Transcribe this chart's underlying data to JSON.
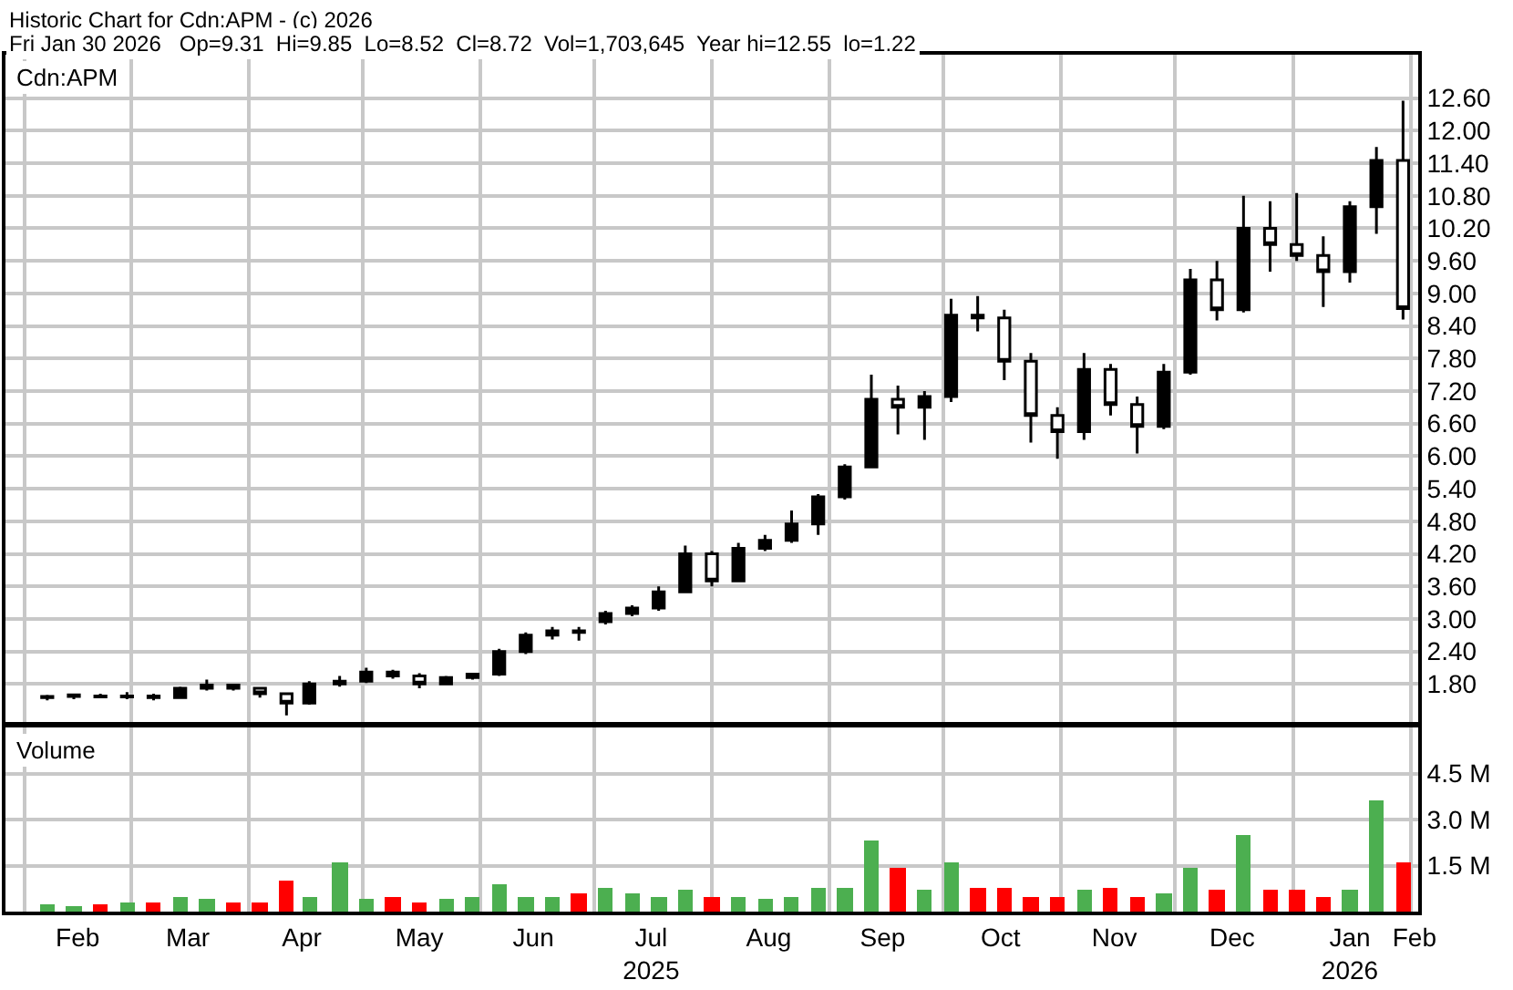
{
  "chart_data": [
    {
      "type": "candlestick",
      "title": "Historic Chart for Cdn:APM - (c) 2026",
      "subtitle": "Fri Jan 30 2026   Op=9.31  Hi=9.85  Lo=8.52  Cl=8.72  Vol=1,703,645  Year hi=12.55  lo=1.22",
      "annotations": [
        "Cdn:APM"
      ],
      "x": [
        "2025-02-07",
        "2025-02-14",
        "2025-02-21",
        "2025-02-28",
        "2025-03-07",
        "2025-03-14",
        "2025-03-21",
        "2025-03-28",
        "2025-04-04",
        "2025-04-11",
        "2025-04-17",
        "2025-04-25",
        "2025-05-02",
        "2025-05-09",
        "2025-05-16",
        "2025-05-23",
        "2025-05-30",
        "2025-06-06",
        "2025-06-13",
        "2025-06-20",
        "2025-06-27",
        "2025-07-04",
        "2025-07-11",
        "2025-07-18",
        "2025-07-25",
        "2025-08-01",
        "2025-08-08",
        "2025-08-15",
        "2025-08-22",
        "2025-08-29",
        "2025-09-05",
        "2025-09-12",
        "2025-09-19",
        "2025-09-26",
        "2025-10-03",
        "2025-10-10",
        "2025-10-17",
        "2025-10-24",
        "2025-10-31",
        "2025-11-07",
        "2025-11-14",
        "2025-11-21",
        "2025-11-28",
        "2025-12-05",
        "2025-12-12",
        "2025-12-19",
        "2025-12-26",
        "2026-01-02",
        "2026-01-09",
        "2026-01-16",
        "2026-01-23",
        "2026-01-30"
      ],
      "ohlc": [
        [
          1.55,
          1.6,
          1.5,
          1.57
        ],
        [
          1.57,
          1.62,
          1.52,
          1.6
        ],
        [
          1.58,
          1.62,
          1.54,
          1.56
        ],
        [
          1.56,
          1.65,
          1.52,
          1.58
        ],
        [
          1.58,
          1.62,
          1.5,
          1.55
        ],
        [
          1.55,
          1.75,
          1.54,
          1.72
        ],
        [
          1.72,
          1.88,
          1.68,
          1.78
        ],
        [
          1.78,
          1.8,
          1.68,
          1.72
        ],
        [
          1.72,
          1.74,
          1.55,
          1.62
        ],
        [
          1.62,
          1.64,
          1.22,
          1.45
        ],
        [
          1.45,
          1.85,
          1.42,
          1.8
        ],
        [
          1.8,
          1.95,
          1.75,
          1.85
        ],
        [
          1.85,
          2.1,
          1.82,
          2.02
        ],
        [
          2.02,
          2.06,
          1.9,
          1.95
        ],
        [
          1.95,
          2.0,
          1.72,
          1.8
        ],
        [
          1.8,
          1.95,
          1.78,
          1.92
        ],
        [
          1.92,
          2.0,
          1.88,
          1.98
        ],
        [
          1.98,
          2.45,
          1.95,
          2.4
        ],
        [
          2.4,
          2.75,
          2.35,
          2.7
        ],
        [
          2.7,
          2.85,
          2.62,
          2.78
        ],
        [
          2.78,
          2.85,
          2.6,
          2.75
        ],
        [
          2.95,
          3.15,
          2.9,
          3.1
        ],
        [
          3.1,
          3.25,
          3.05,
          3.2
        ],
        [
          3.2,
          3.6,
          3.15,
          3.5
        ],
        [
          3.5,
          4.35,
          3.5,
          4.2
        ],
        [
          4.2,
          4.25,
          3.6,
          3.7
        ],
        [
          3.7,
          4.4,
          3.7,
          4.3
        ],
        [
          4.3,
          4.55,
          4.25,
          4.45
        ],
        [
          4.45,
          5.0,
          4.4,
          4.75
        ],
        [
          4.75,
          5.3,
          4.55,
          5.25
        ],
        [
          5.25,
          5.85,
          5.2,
          5.8
        ],
        [
          5.8,
          7.5,
          5.8,
          7.05
        ],
        [
          7.05,
          7.3,
          6.4,
          6.9
        ],
        [
          6.9,
          7.2,
          6.3,
          7.1
        ],
        [
          7.1,
          8.9,
          7.0,
          8.6
        ],
        [
          8.6,
          8.95,
          8.3,
          8.55
        ],
        [
          8.55,
          8.7,
          7.4,
          7.75
        ],
        [
          7.75,
          7.9,
          6.25,
          6.75
        ],
        [
          6.75,
          6.9,
          5.95,
          6.45
        ],
        [
          6.45,
          7.9,
          6.3,
          7.6
        ],
        [
          7.6,
          7.7,
          6.75,
          6.95
        ],
        [
          6.95,
          7.1,
          6.05,
          6.55
        ],
        [
          6.55,
          7.7,
          6.5,
          7.55
        ],
        [
          7.55,
          9.45,
          7.5,
          9.25
        ],
        [
          9.25,
          9.6,
          8.5,
          8.7
        ],
        [
          8.7,
          10.8,
          8.65,
          10.2
        ],
        [
          10.2,
          10.7,
          9.4,
          9.9
        ],
        [
          9.9,
          10.85,
          9.6,
          9.7
        ],
        [
          9.7,
          10.05,
          8.75,
          9.4
        ],
        [
          9.4,
          10.7,
          9.2,
          10.6
        ],
        [
          10.6,
          11.7,
          10.1,
          11.45
        ],
        [
          11.45,
          12.55,
          8.52,
          8.72
        ]
      ],
      "color": "#000000",
      "xlim": [
        "2025-01-27",
        "2026-02-03"
      ],
      "ylim": [
        1.1,
        13.4
      ],
      "yticks": [
        {
          "value": 1.8,
          "label": "1.80"
        },
        {
          "value": 2.4,
          "label": "2.40"
        },
        {
          "value": 3.0,
          "label": "3.00"
        },
        {
          "value": 3.6,
          "label": "3.60"
        },
        {
          "value": 4.2,
          "label": "4.20"
        },
        {
          "value": 4.8,
          "label": "4.80"
        },
        {
          "value": 5.4,
          "label": "5.40"
        },
        {
          "value": 6.0,
          "label": "6.00"
        },
        {
          "value": 6.6,
          "label": "6.60"
        },
        {
          "value": 7.2,
          "label": "7.20"
        },
        {
          "value": 7.8,
          "label": "7.80"
        },
        {
          "value": 8.4,
          "label": "8.40"
        },
        {
          "value": 9.0,
          "label": "9.00"
        },
        {
          "value": 9.6,
          "label": "9.60"
        },
        {
          "value": 10.2,
          "label": "10.20"
        },
        {
          "value": 10.8,
          "label": "10.80"
        },
        {
          "value": 11.4,
          "label": "11.40"
        },
        {
          "value": 12.0,
          "label": "12.00"
        },
        {
          "value": 12.6,
          "label": "12.60"
        }
      ],
      "tick_labels": "y",
      "grid": true
    },
    {
      "type": "bar",
      "annotations": [
        "Volume"
      ],
      "x": [
        "2025-02-07",
        "2025-02-14",
        "2025-02-21",
        "2025-02-28",
        "2025-03-07",
        "2025-03-14",
        "2025-03-21",
        "2025-03-28",
        "2025-04-04",
        "2025-04-11",
        "2025-04-17",
        "2025-04-25",
        "2025-05-02",
        "2025-05-09",
        "2025-05-16",
        "2025-05-23",
        "2025-05-30",
        "2025-06-06",
        "2025-06-13",
        "2025-06-20",
        "2025-06-27",
        "2025-07-04",
        "2025-07-11",
        "2025-07-18",
        "2025-07-25",
        "2025-08-01",
        "2025-08-08",
        "2025-08-15",
        "2025-08-22",
        "2025-08-29",
        "2025-09-05",
        "2025-09-12",
        "2025-09-19",
        "2025-09-26",
        "2025-10-03",
        "2025-10-10",
        "2025-10-17",
        "2025-10-24",
        "2025-10-31",
        "2025-11-07",
        "2025-11-14",
        "2025-11-21",
        "2025-11-28",
        "2025-12-05",
        "2025-12-12",
        "2025-12-19",
        "2025-12-26",
        "2026-01-02",
        "2026-01-09",
        "2026-01-16",
        "2026-01-23",
        "2026-01-30"
      ],
      "values": [
        0.25,
        0.2,
        0.25,
        0.3,
        0.3,
        0.5,
        0.4,
        0.3,
        0.3,
        1.0,
        0.5,
        1.6,
        0.4,
        0.5,
        0.3,
        0.4,
        0.5,
        0.9,
        0.5,
        0.5,
        0.6,
        0.8,
        0.6,
        0.5,
        0.7,
        0.5,
        0.5,
        0.4,
        0.5,
        0.8,
        0.8,
        2.3,
        1.4,
        0.7,
        1.6,
        0.8,
        0.8,
        0.5,
        0.5,
        0.7,
        0.8,
        0.5,
        0.6,
        1.4,
        0.7,
        2.5,
        0.7,
        0.7,
        0.5,
        0.7,
        3.6,
        1.6
      ],
      "colors": [
        "#4caf50",
        "#4caf50",
        "#ff0000",
        "#4caf50",
        "#ff0000",
        "#4caf50",
        "#4caf50",
        "#ff0000",
        "#ff0000",
        "#ff0000",
        "#4caf50",
        "#4caf50",
        "#4caf50",
        "#ff0000",
        "#ff0000",
        "#4caf50",
        "#4caf50",
        "#4caf50",
        "#4caf50",
        "#4caf50",
        "#ff0000",
        "#4caf50",
        "#4caf50",
        "#4caf50",
        "#4caf50",
        "#ff0000",
        "#4caf50",
        "#4caf50",
        "#4caf50",
        "#4caf50",
        "#4caf50",
        "#4caf50",
        "#ff0000",
        "#4caf50",
        "#4caf50",
        "#ff0000",
        "#ff0000",
        "#ff0000",
        "#ff0000",
        "#4caf50",
        "#ff0000",
        "#ff0000",
        "#4caf50",
        "#4caf50",
        "#ff0000",
        "#4caf50",
        "#ff0000",
        "#ff0000",
        "#ff0000",
        "#4caf50",
        "#4caf50",
        "#ff0000"
      ],
      "xlim": [
        "2025-01-27",
        "2026-02-03"
      ],
      "xticks": [
        {
          "value": "2025-02-15",
          "label": "Feb"
        },
        {
          "value": "2025-03-16",
          "label": "Mar"
        },
        {
          "value": "2025-04-15",
          "label": "Apr"
        },
        {
          "value": "2025-05-16",
          "label": "May"
        },
        {
          "value": "2025-06-15",
          "label": "Jun"
        },
        {
          "value": "2025-07-16",
          "label": "Jul\n2025"
        },
        {
          "value": "2025-08-16",
          "label": "Aug"
        },
        {
          "value": "2025-09-15",
          "label": "Sep"
        },
        {
          "value": "2025-10-16",
          "label": "Oct"
        },
        {
          "value": "2025-11-15",
          "label": "Nov"
        },
        {
          "value": "2025-12-16",
          "label": "Dec"
        },
        {
          "value": "2026-01-16",
          "label": "Jan\n2026"
        },
        {
          "value": "2026-02-02",
          "label": "Feb"
        }
      ],
      "ylim": [
        0,
        6.0
      ],
      "yticks": [
        {
          "value": 1.5,
          "label": "1.5 M"
        },
        {
          "value": 3.0,
          "label": "3.0 M"
        },
        {
          "value": 4.5,
          "label": "4.5 M"
        }
      ],
      "grid": true
    }
  ]
}
